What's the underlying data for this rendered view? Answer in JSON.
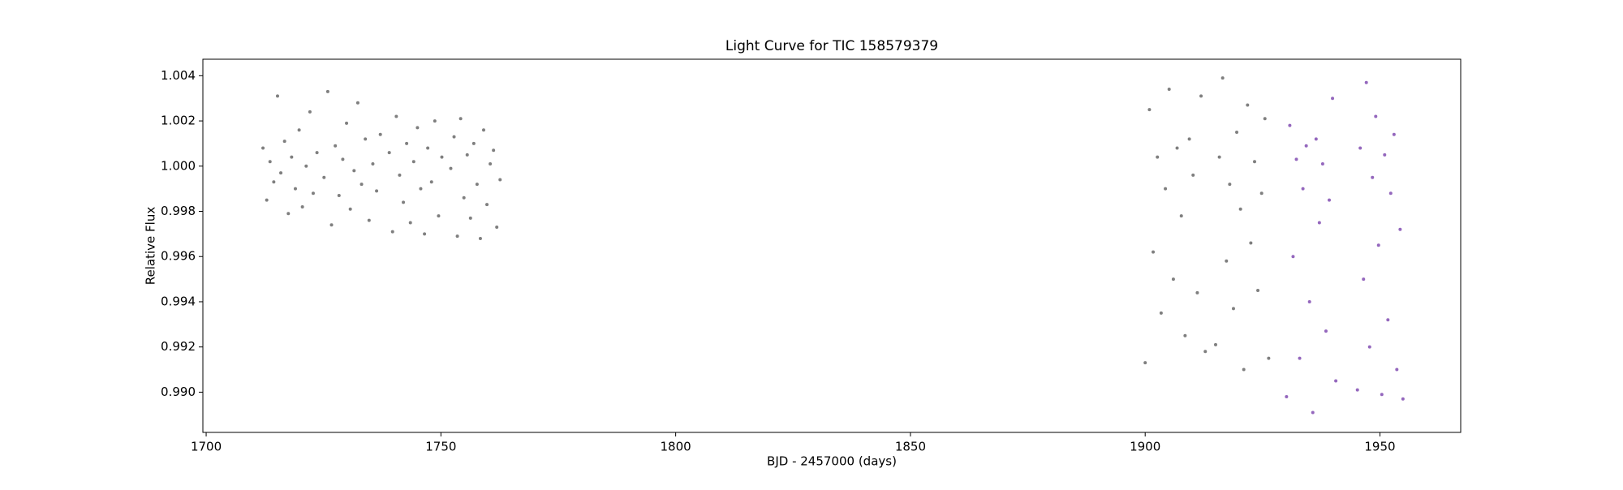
{
  "chart_data": {
    "type": "scatter",
    "title": "Light Curve for TIC 158579379",
    "x_label": "BJD - 2457000 (days)",
    "y_label": "Relative Flux",
    "xlim": [
      1699.3,
      1967.2
    ],
    "ylim": [
      0.98822,
      1.00473
    ],
    "xticks": [
      1700,
      1750,
      1800,
      1850,
      1900,
      1950
    ],
    "yticks": [
      {
        "value": 0.99,
        "label": "0.990"
      },
      0.992,
      0.994,
      0.996,
      0.998,
      {
        "value": 1,
        "label": "1.000"
      },
      1.002,
      1.004
    ],
    "grid": false,
    "series": [
      {
        "color": "#7f7f7f",
        "x": [
          1712.1,
          1712.9,
          1713.6,
          1714.4,
          1715.2,
          1715.9,
          1716.7,
          1717.5,
          1718.2,
          1719.0,
          1719.8,
          1720.5,
          1721.3,
          1722.1,
          1722.8,
          1723.6,
          1725.1,
          1725.9,
          1726.7,
          1727.5,
          1728.3,
          1729.1,
          1729.9,
          1730.7,
          1731.5,
          1732.3,
          1733.1,
          1733.9,
          1734.7,
          1735.5,
          1736.3,
          1737.1,
          1739.0,
          1739.7,
          1740.5,
          1741.2,
          1742.0,
          1742.7,
          1743.5,
          1744.2,
          1745.0,
          1745.7,
          1746.5,
          1747.2,
          1748.0,
          1748.7,
          1749.5,
          1750.2,
          1752.1,
          1752.8,
          1753.5,
          1754.2,
          1754.9,
          1755.6,
          1756.3,
          1757.0,
          1757.7,
          1758.4,
          1759.1,
          1759.8,
          1760.5,
          1761.2,
          1761.9,
          1762.6,
          1900.0,
          1900.9,
          1901.7,
          1902.6,
          1903.4,
          1904.3,
          1905.1,
          1906.0,
          1906.8,
          1907.7,
          1908.5,
          1909.4,
          1910.2,
          1911.1,
          1911.9,
          1912.8,
          1915.0,
          1915.8,
          1916.5,
          1917.3,
          1918.0,
          1918.8,
          1919.5,
          1920.3,
          1921.0,
          1921.8,
          1922.5,
          1923.3,
          1924.0,
          1924.8,
          1925.5,
          1926.3
        ],
        "values": [
          1.0008,
          0.9985,
          1.0002,
          0.9993,
          1.0031,
          0.9997,
          1.0011,
          0.9979,
          1.0004,
          0.999,
          1.0016,
          0.9982,
          1.0,
          1.0024,
          0.9988,
          1.0006,
          0.9995,
          1.0033,
          0.9974,
          1.0009,
          0.9987,
          1.0003,
          1.0019,
          0.9981,
          0.9998,
          1.0028,
          0.9992,
          1.0012,
          0.9976,
          1.0001,
          0.9989,
          1.0014,
          1.0006,
          0.9971,
          1.0022,
          0.9996,
          0.9984,
          1.001,
          0.9975,
          1.0002,
          1.0017,
          0.999,
          0.997,
          1.0008,
          0.9993,
          1.002,
          0.9978,
          1.0004,
          0.9999,
          1.0013,
          0.9969,
          1.0021,
          0.9986,
          1.0005,
          0.9977,
          1.001,
          0.9992,
          0.9968,
          1.0016,
          0.9983,
          1.0001,
          1.0007,
          0.9973,
          0.9994,
          0.9913,
          1.0025,
          0.9962,
          1.0004,
          0.9935,
          0.999,
          1.0034,
          0.995,
          1.0008,
          0.9978,
          0.9925,
          1.0012,
          0.9996,
          0.9944,
          1.0031,
          0.9918,
          0.9921,
          1.0004,
          1.0039,
          0.9958,
          0.9992,
          0.9937,
          1.0015,
          0.9981,
          0.991,
          1.0027,
          0.9966,
          1.0002,
          0.9945,
          0.9988,
          1.0021,
          0.9915
        ]
      },
      {
        "color": "#9467bd",
        "x": [
          1930.1,
          1930.8,
          1931.5,
          1932.2,
          1932.9,
          1933.6,
          1934.3,
          1935.0,
          1935.7,
          1936.4,
          1937.1,
          1937.8,
          1938.5,
          1939.2,
          1939.9,
          1940.6,
          1945.2,
          1945.8,
          1946.5,
          1947.1,
          1947.8,
          1948.4,
          1949.1,
          1949.7,
          1950.4,
          1951.0,
          1951.7,
          1952.3,
          1953.0,
          1953.6,
          1954.3,
          1954.9
        ],
        "values": [
          0.9898,
          1.0018,
          0.996,
          1.0003,
          0.9915,
          0.999,
          1.0009,
          0.994,
          0.9891,
          1.0012,
          0.9975,
          1.0001,
          0.9927,
          0.9985,
          1.003,
          0.9905,
          0.9901,
          1.0008,
          0.995,
          1.0037,
          0.992,
          0.9995,
          1.0022,
          0.9965,
          0.9899,
          1.0005,
          0.9932,
          0.9988,
          1.0014,
          0.991,
          0.9972,
          0.9897
        ]
      }
    ]
  }
}
